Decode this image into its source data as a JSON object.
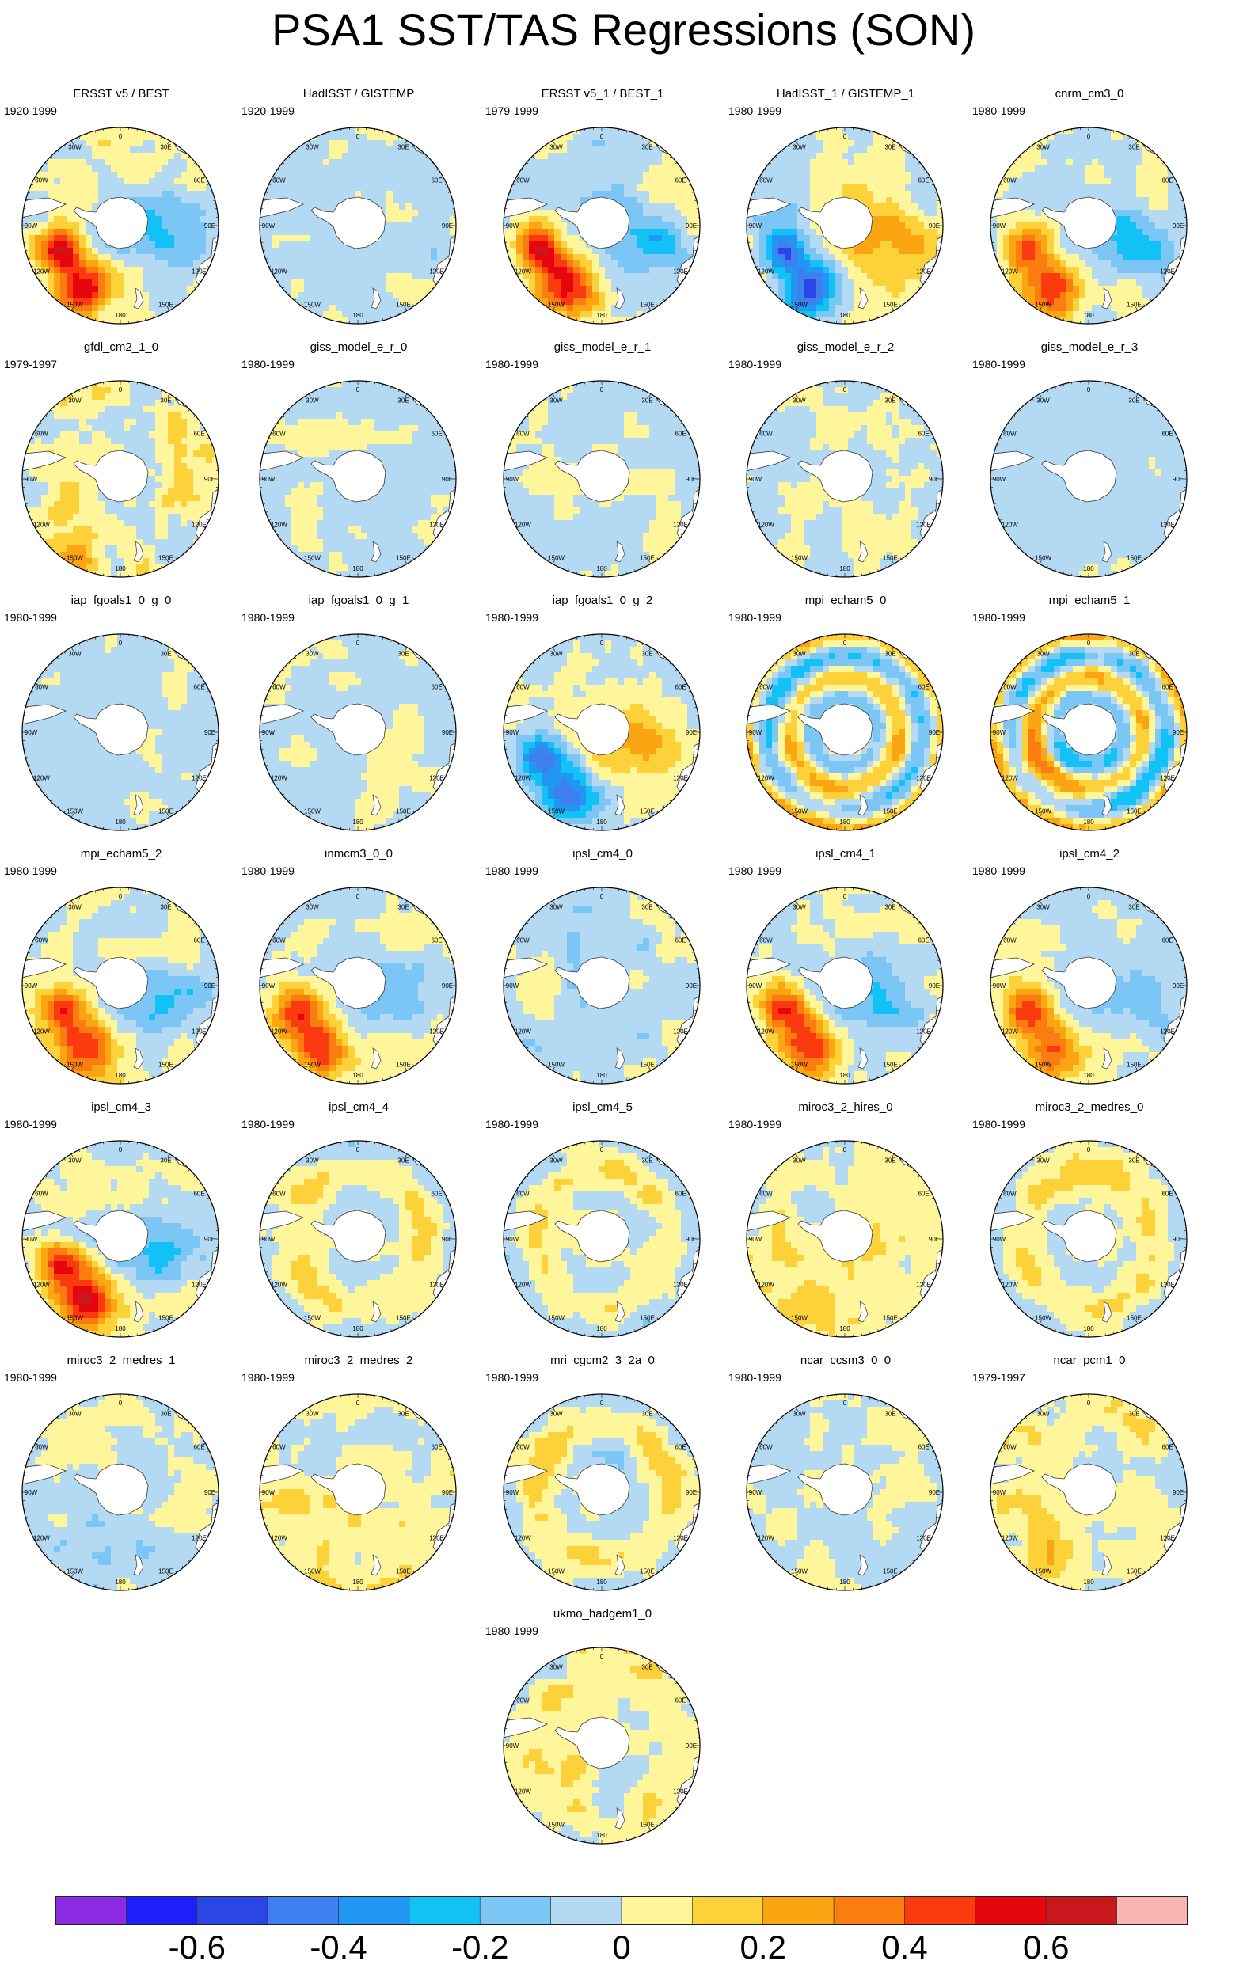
{
  "title": "PSA1 SST/TAS Regressions (SON)",
  "lon_labels": [
    "0",
    "30E",
    "60E",
    "90E",
    "120E",
    "150E",
    "180",
    "150W",
    "120W",
    "90W",
    "60W",
    "30W"
  ],
  "palette": [
    "#8a2be2",
    "#1e1efa",
    "#2a47e6",
    "#3f7ff0",
    "#2196f3",
    "#12c1f5",
    "#7cc6f5",
    "#b4daf3",
    "#fff59a",
    "#fdd13a",
    "#fca512",
    "#fb7c10",
    "#fb3a10",
    "#e5070d",
    "#c8181e",
    "#f9b5b0"
  ],
  "colorbar": {
    "ticks": [
      "-0.6",
      "-0.4",
      "-0.2",
      "0",
      "0.2",
      "0.4",
      "0.6"
    ],
    "min": -0.8,
    "max": 0.8
  },
  "land_color": "#ffffff",
  "panels": [
    {
      "name": "ERSST v5 / BEST",
      "years": "1920-1999",
      "pattern": "obs",
      "amp": 1.0
    },
    {
      "name": "HadISST / GISTEMP",
      "years": "1920-1999",
      "pattern": "weak",
      "amp": 0.5
    },
    {
      "name": "ERSST v5_1 / BEST_1",
      "years": "1979-1999",
      "pattern": "obs",
      "amp": 1.05
    },
    {
      "name": "HadISST_1 / GISTEMP_1",
      "years": "1980-1999",
      "pattern": "obs_neg",
      "amp": 1.0
    },
    {
      "name": "cnrm_cm3_0",
      "years": "1980-1999",
      "pattern": "obs",
      "amp": 0.9
    },
    {
      "name": "gfdl_cm2_1_0",
      "years": "1979-1997",
      "pattern": "noisy_pos",
      "amp": 0.7
    },
    {
      "name": "giss_model_e_r_0",
      "years": "1980-1999",
      "pattern": "weak",
      "amp": 0.45
    },
    {
      "name": "giss_model_e_r_1",
      "years": "1980-1999",
      "pattern": "weak",
      "amp": 0.4
    },
    {
      "name": "giss_model_e_r_2",
      "years": "1980-1999",
      "pattern": "weak",
      "amp": 0.45
    },
    {
      "name": "giss_model_e_r_3",
      "years": "1980-1999",
      "pattern": "weak_neg",
      "amp": 0.4
    },
    {
      "name": "iap_fgoals1_0_g_0",
      "years": "1980-1999",
      "pattern": "weak",
      "amp": 0.35
    },
    {
      "name": "iap_fgoals1_0_g_1",
      "years": "1980-1999",
      "pattern": "weak",
      "amp": 0.4
    },
    {
      "name": "iap_fgoals1_0_g_2",
      "years": "1980-1999",
      "pattern": "obs_neg",
      "amp": 0.8
    },
    {
      "name": "mpi_echam5_0",
      "years": "1980-1999",
      "pattern": "ring",
      "amp": 0.7
    },
    {
      "name": "mpi_echam5_1",
      "years": "1980-1999",
      "pattern": "ring",
      "amp": 0.8
    },
    {
      "name": "mpi_echam5_2",
      "years": "1980-1999",
      "pattern": "obs",
      "amp": 0.95
    },
    {
      "name": "inmcm3_0_0",
      "years": "1980-1999",
      "pattern": "obs",
      "amp": 0.85
    },
    {
      "name": "ipsl_cm4_0",
      "years": "1980-1999",
      "pattern": "weak",
      "amp": 0.55
    },
    {
      "name": "ipsl_cm4_1",
      "years": "1980-1999",
      "pattern": "obs",
      "amp": 0.95
    },
    {
      "name": "ipsl_cm4_2",
      "years": "1980-1999",
      "pattern": "obs",
      "amp": 0.8
    },
    {
      "name": "ipsl_cm4_3",
      "years": "1980-1999",
      "pattern": "obs",
      "amp": 1.0
    },
    {
      "name": "ipsl_cm4_4",
      "years": "1980-1999",
      "pattern": "ring_pos",
      "amp": 0.55
    },
    {
      "name": "ipsl_cm4_5",
      "years": "1980-1999",
      "pattern": "ring_pos",
      "amp": 0.55
    },
    {
      "name": "miroc3_2_hires_0",
      "years": "1980-1999",
      "pattern": "noisy_pos",
      "amp": 0.6
    },
    {
      "name": "miroc3_2_medres_0",
      "years": "1980-1999",
      "pattern": "ring_pos",
      "amp": 0.5
    },
    {
      "name": "miroc3_2_medres_1",
      "years": "1980-1999",
      "pattern": "weak",
      "amp": 0.5
    },
    {
      "name": "miroc3_2_medres_2",
      "years": "1980-1999",
      "pattern": "noisy_pos",
      "amp": 0.5
    },
    {
      "name": "mri_cgcm2_3_2a_0",
      "years": "1980-1999",
      "pattern": "ring_pos",
      "amp": 0.6
    },
    {
      "name": "ncar_ccsm3_0_0",
      "years": "1980-1999",
      "pattern": "weak",
      "amp": 0.45
    },
    {
      "name": "ncar_pcm1_0",
      "years": "1979-1997",
      "pattern": "noisy_pos",
      "amp": 0.55
    },
    {
      "name": "ukmo_hadgem1_0",
      "years": "1980-1999",
      "pattern": "noisy_pos",
      "amp": 0.55
    }
  ]
}
